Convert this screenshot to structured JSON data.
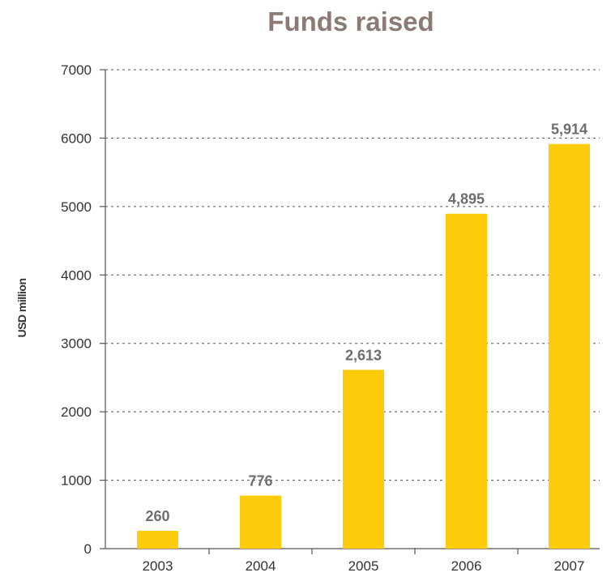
{
  "chart_data": {
    "type": "bar",
    "title": "Funds raised",
    "xlabel": "",
    "ylabel": "USD million",
    "categories": [
      "2003",
      "2004",
      "2005",
      "2006",
      "2007"
    ],
    "values": [
      260,
      776,
      2613,
      4895,
      5914
    ],
    "value_labels": [
      "260",
      "776",
      "2,613",
      "4,895",
      "5,914"
    ],
    "ylim": [
      0,
      7000
    ],
    "yticks": [
      0,
      1000,
      2000,
      3000,
      4000,
      5000,
      6000,
      7000
    ],
    "grid": true,
    "bar_color": "#fdcb09",
    "title_color": "#8b7b74",
    "label_color": "#6e6e6e"
  }
}
